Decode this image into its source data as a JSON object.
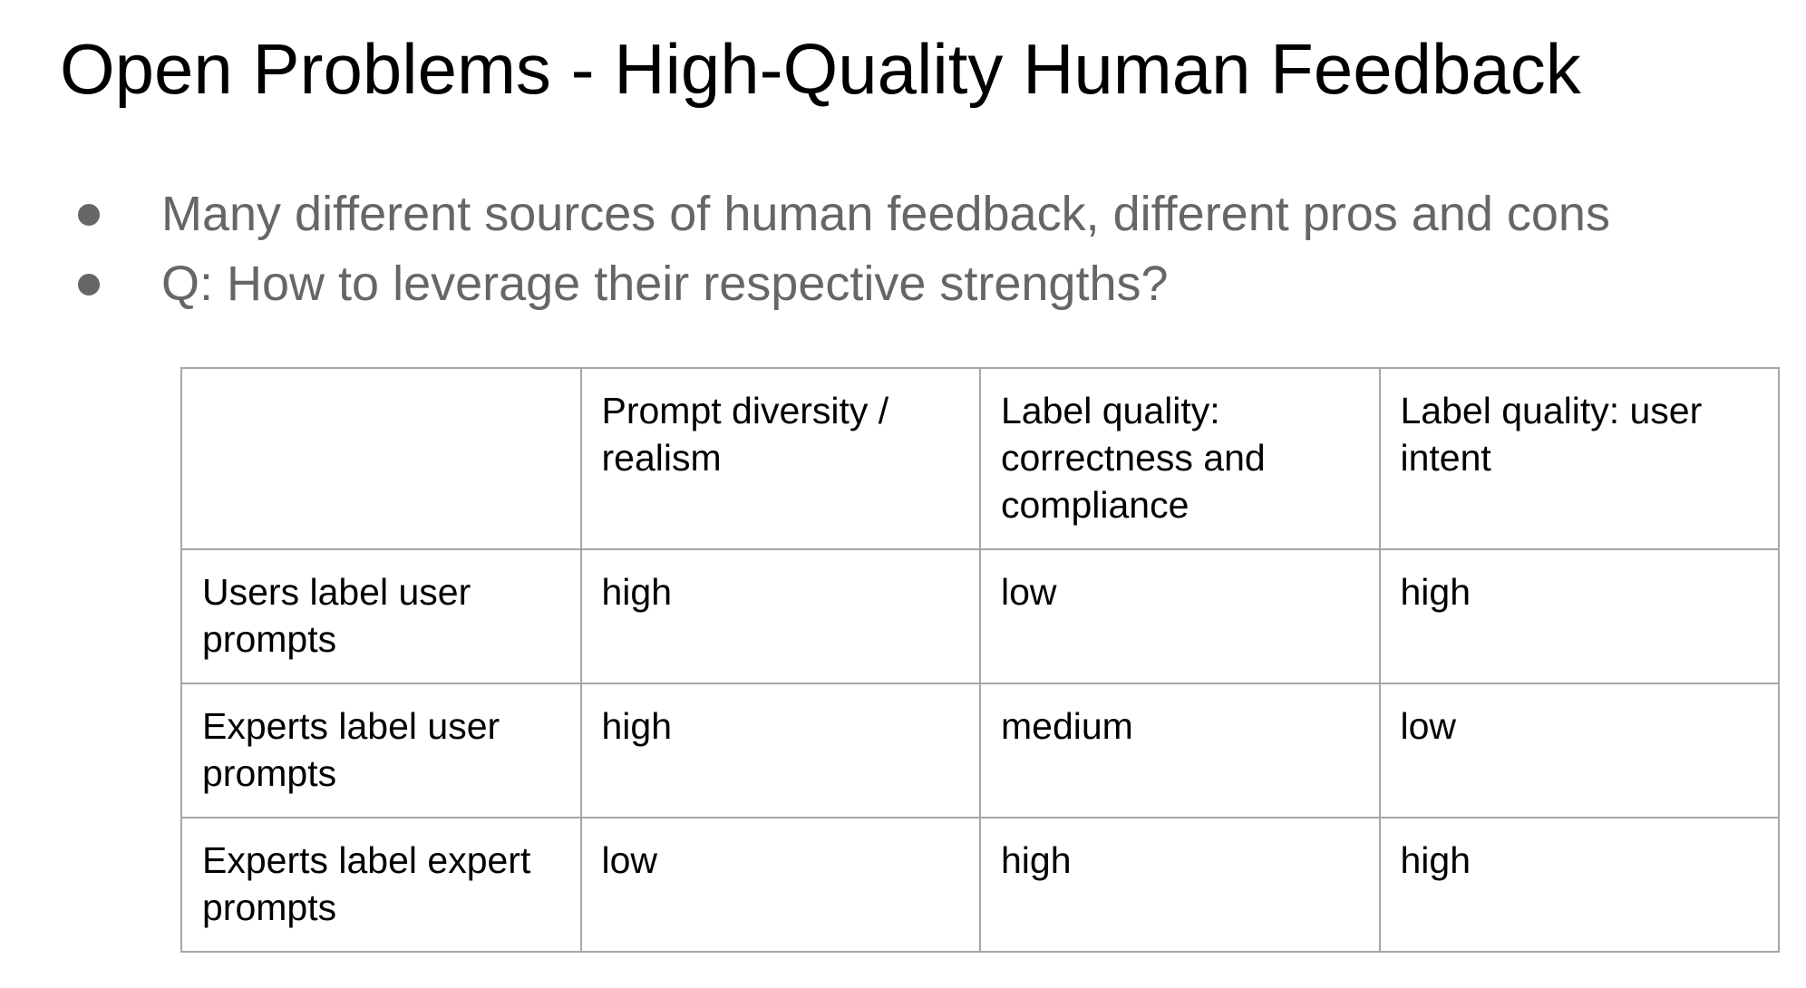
{
  "slide": {
    "title": "Open Problems - High-Quality Human Feedback",
    "bullets": [
      "Many different sources of human feedback, different pros and cons",
      "Q: How to leverage their respective strengths?"
    ]
  },
  "table": {
    "headers": [
      "",
      "Prompt diversity / realism",
      "Label quality: correctness and compliance",
      "Label quality: user intent"
    ],
    "rows": [
      [
        "Users label user prompts",
        "high",
        "low",
        "high"
      ],
      [
        "Experts label user prompts",
        "high",
        "medium",
        "low"
      ],
      [
        "Experts label expert prompts",
        "low",
        "high",
        "high"
      ]
    ]
  },
  "colors": {
    "title_text": "#000000",
    "bullet_text": "#666666",
    "table_border": "#a6a6a6"
  }
}
